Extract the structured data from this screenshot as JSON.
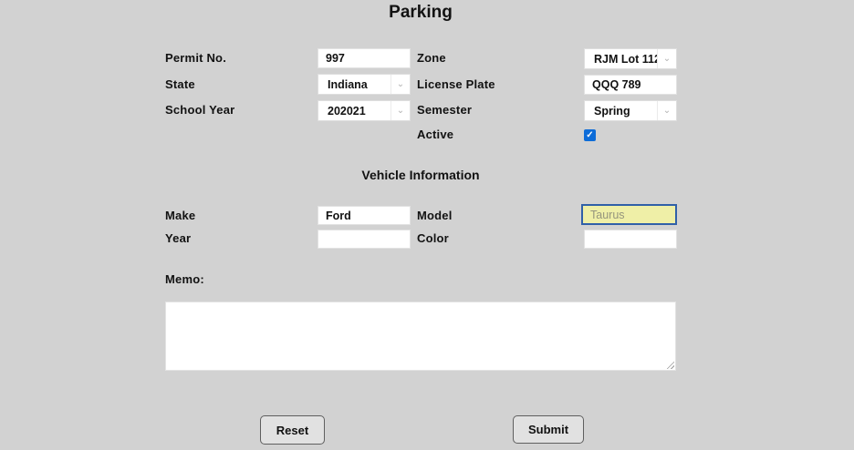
{
  "title": "Parking",
  "form": {
    "permit_no": {
      "label": "Permit No.",
      "value": "997"
    },
    "zone": {
      "label": "Zone",
      "value": "RJM Lot 112"
    },
    "state": {
      "label": "State",
      "value": "Indiana"
    },
    "license_plate": {
      "label": "License Plate",
      "value": "QQQ 789"
    },
    "school_year": {
      "label": "School Year",
      "value": "202021"
    },
    "semester": {
      "label": "Semester",
      "value": "Spring"
    },
    "active": {
      "label": "Active",
      "checked": true
    }
  },
  "vehicle": {
    "heading": "Vehicle Information",
    "make": {
      "label": "Make",
      "value": "Ford"
    },
    "model": {
      "label": "Model",
      "value": "",
      "placeholder": "Taurus"
    },
    "year": {
      "label": "Year",
      "value": ""
    },
    "color": {
      "label": "Color",
      "value": ""
    }
  },
  "memo": {
    "label": "Memo:",
    "value": ""
  },
  "buttons": {
    "reset": "Reset",
    "submit": "Submit"
  },
  "icons": {
    "dropdown_chevron": "⌄",
    "checkbox_check": "✓"
  },
  "colors": {
    "page_background": "#d2d2d2",
    "checkbox_blue": "#0d6cd8",
    "model_highlight_background": "#efefa7",
    "model_focus_border": "#3060a8"
  }
}
